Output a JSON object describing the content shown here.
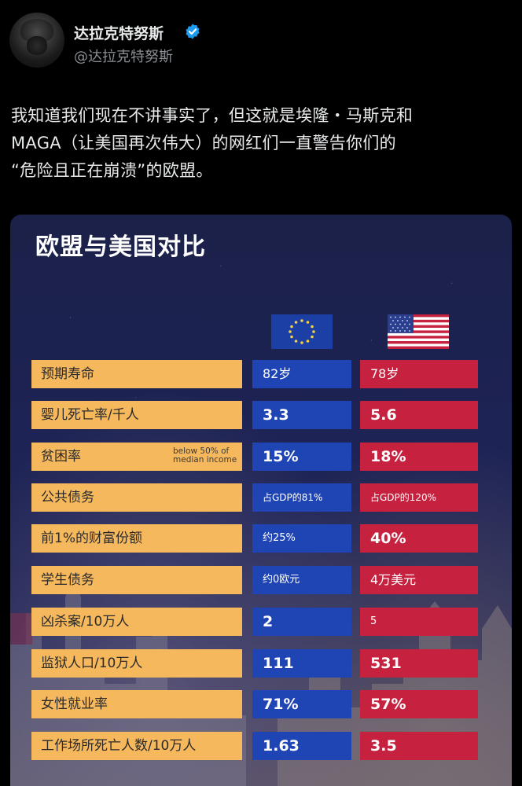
{
  "author": {
    "display_name": "达拉克特努斯",
    "handle": "@达拉克特努斯",
    "verified_icon": "verified-badge-icon",
    "badge_color": "#1d9bf0"
  },
  "tweet": {
    "lines": [
      "我知道我们现在不讲事实了，但这就是埃隆・马斯克和",
      "MAGA（让美国再次伟大）的网红们一直警告你们的",
      "“危险且正在崩溃”的欧盟。"
    ]
  },
  "infographic": {
    "title": "欧盟与美国对比",
    "flags": {
      "eu": "eu-flag-icon",
      "us": "us-flag-icon"
    },
    "colors": {
      "label_bg": "#f6b85d",
      "eu_bg": "#1f45b5",
      "us_bg": "#c6223f"
    },
    "rows": [
      {
        "label": "预期寿命",
        "note": "",
        "eu": "82岁",
        "us": "78岁"
      },
      {
        "label": "婴儿死亡率/千人",
        "note": "",
        "eu": "3.3",
        "us": "5.6"
      },
      {
        "label": "贫困率",
        "note": "below 50% of\nmedian income",
        "eu": "15%",
        "us": "18%"
      },
      {
        "label": "公共债务",
        "note": "",
        "eu": "占GDP的81%",
        "us": "占GDP的120%"
      },
      {
        "label": "前1%的财富份额",
        "note": "",
        "eu": "约25%",
        "us": "40%"
      },
      {
        "label": "学生债务",
        "note": "",
        "eu": "约0欧元",
        "us": "4万美元"
      },
      {
        "label": "凶杀案/10万人",
        "note": "",
        "eu": "2",
        "us": "5"
      },
      {
        "label": "监狱人口/10万人",
        "note": "",
        "eu": "111",
        "us": "531"
      },
      {
        "label": "女性就业率",
        "note": "",
        "eu": "71%",
        "us": "57%"
      },
      {
        "label": "工作场所死亡人数/10万人",
        "note": "",
        "eu": "1.63",
        "us": "3.5"
      }
    ]
  }
}
